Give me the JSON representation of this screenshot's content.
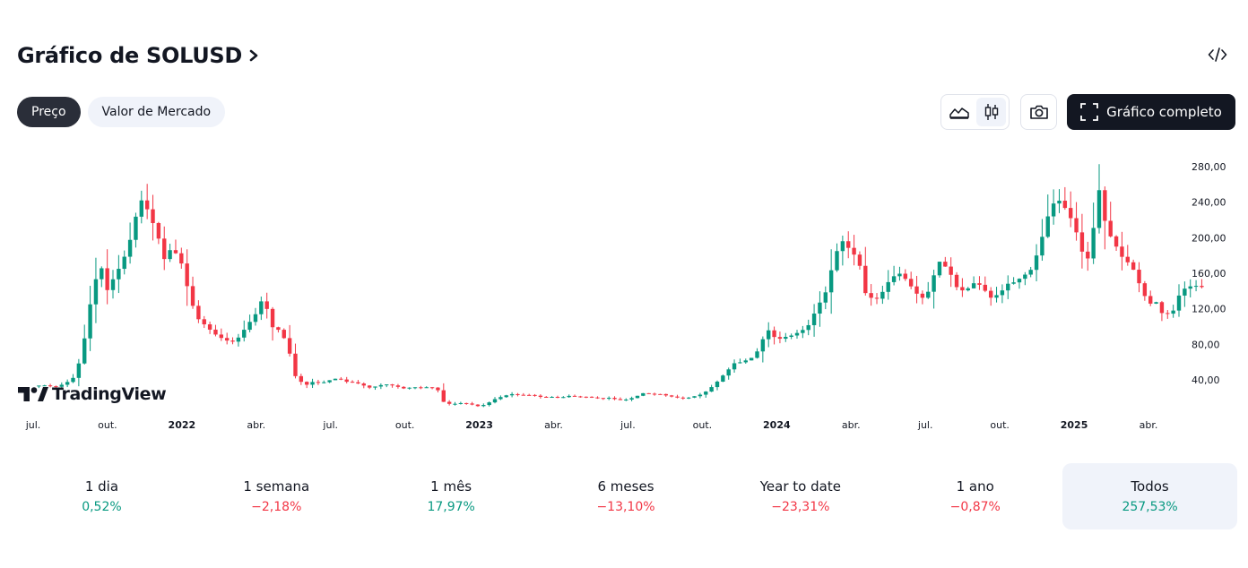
{
  "header": {
    "title": "Gráfico de SOLUSD"
  },
  "tabs": [
    {
      "label": "Preço",
      "active": true
    },
    {
      "label": "Valor de Mercado",
      "active": false
    }
  ],
  "toolbar": {
    "area_icon": "area-chart-icon",
    "candle_icon": "candlestick-icon",
    "camera_icon": "camera-icon",
    "full_chart_label": "Gráfico completo",
    "expand_icon": "fullscreen-icon",
    "embed_icon": "code-icon"
  },
  "brand": {
    "logo_text": "TradingView"
  },
  "colors": {
    "up": "#089981",
    "down": "#f23645",
    "text": "#131722",
    "active_bg": "#f0f3fa"
  },
  "chart_data": {
    "type": "candlestick",
    "series_name": "SOLUSD weekly",
    "y_axis": {
      "ticks": [
        "280,00",
        "240,00",
        "200,00",
        "160,00",
        "120,00",
        "80,00",
        "40,00"
      ],
      "tick_values": [
        280,
        240,
        200,
        160,
        120,
        80,
        40
      ],
      "ylim": [
        -20,
        295
      ]
    },
    "x_axis": {
      "range_months": [
        0,
        48
      ],
      "ticks": [
        {
          "label": "jul.",
          "month": 0,
          "year": false
        },
        {
          "label": "out.",
          "month": 3,
          "year": false
        },
        {
          "label": "2022",
          "month": 6,
          "year": true
        },
        {
          "label": "abr.",
          "month": 9,
          "year": false
        },
        {
          "label": "jul.",
          "month": 12,
          "year": false
        },
        {
          "label": "out.",
          "month": 15,
          "year": false
        },
        {
          "label": "2023",
          "month": 18,
          "year": true
        },
        {
          "label": "abr.",
          "month": 21,
          "year": false
        },
        {
          "label": "jul.",
          "month": 24,
          "year": false
        },
        {
          "label": "out.",
          "month": 27,
          "year": false
        },
        {
          "label": "2024",
          "month": 30,
          "year": true
        },
        {
          "label": "abr.",
          "month": 33,
          "year": false
        },
        {
          "label": "jul.",
          "month": 36,
          "year": false
        },
        {
          "label": "out.",
          "month": 39,
          "year": false
        },
        {
          "label": "2025",
          "month": 42,
          "year": true
        },
        {
          "label": "abr.",
          "month": 45,
          "year": false
        }
      ]
    },
    "close_path": [
      [
        0,
        33
      ],
      [
        0.4,
        34
      ],
      [
        0.9,
        32
      ],
      [
        1.3,
        36
      ],
      [
        1.7,
        44
      ],
      [
        2.0,
        75
      ],
      [
        2.3,
        125
      ],
      [
        2.5,
        150
      ],
      [
        2.7,
        172
      ],
      [
        3.0,
        140
      ],
      [
        3.3,
        158
      ],
      [
        3.6,
        172
      ],
      [
        4.0,
        205
      ],
      [
        4.3,
        245
      ],
      [
        4.6,
        232
      ],
      [
        5.0,
        205
      ],
      [
        5.3,
        175
      ],
      [
        5.6,
        190
      ],
      [
        6.0,
        170
      ],
      [
        6.3,
        135
      ],
      [
        6.6,
        110
      ],
      [
        7.0,
        100
      ],
      [
        7.3,
        92
      ],
      [
        7.6,
        87
      ],
      [
        8.0,
        82
      ],
      [
        8.3,
        88
      ],
      [
        8.6,
        100
      ],
      [
        9.0,
        115
      ],
      [
        9.3,
        135
      ],
      [
        9.6,
        100
      ],
      [
        10.0,
        95
      ],
      [
        10.3,
        75
      ],
      [
        10.6,
        42
      ],
      [
        11.0,
        34
      ],
      [
        11.3,
        38
      ],
      [
        11.6,
        36
      ],
      [
        12.0,
        40
      ],
      [
        12.3,
        42
      ],
      [
        12.6,
        38
      ],
      [
        13.0,
        37
      ],
      [
        13.3,
        34
      ],
      [
        13.6,
        31
      ],
      [
        14.0,
        34
      ],
      [
        14.3,
        35
      ],
      [
        14.6,
        33
      ],
      [
        15.0,
        30
      ],
      [
        15.3,
        32
      ],
      [
        15.6,
        31
      ],
      [
        16.0,
        32
      ],
      [
        16.3,
        30
      ],
      [
        16.6,
        13
      ],
      [
        17.0,
        13
      ],
      [
        17.3,
        14
      ],
      [
        17.6,
        13
      ],
      [
        18.0,
        10
      ],
      [
        18.3,
        13
      ],
      [
        18.6,
        18
      ],
      [
        19.0,
        22
      ],
      [
        19.3,
        24
      ],
      [
        19.6,
        23
      ],
      [
        20.0,
        23
      ],
      [
        20.3,
        22
      ],
      [
        20.6,
        20
      ],
      [
        21.0,
        21
      ],
      [
        21.3,
        20
      ],
      [
        21.6,
        22
      ],
      [
        22.0,
        21
      ],
      [
        22.3,
        21
      ],
      [
        22.6,
        20
      ],
      [
        23.0,
        19
      ],
      [
        23.3,
        20
      ],
      [
        23.6,
        17
      ],
      [
        24.0,
        18
      ],
      [
        24.3,
        21
      ],
      [
        24.6,
        25
      ],
      [
        25.0,
        24
      ],
      [
        25.3,
        24
      ],
      [
        25.6,
        22
      ],
      [
        26.0,
        20
      ],
      [
        26.3,
        19
      ],
      [
        26.6,
        21
      ],
      [
        27.0,
        24
      ],
      [
        27.3,
        30
      ],
      [
        27.6,
        38
      ],
      [
        28.0,
        50
      ],
      [
        28.3,
        59
      ],
      [
        28.6,
        60
      ],
      [
        29.0,
        65
      ],
      [
        29.3,
        75
      ],
      [
        29.6,
        98
      ],
      [
        30.0,
        85
      ],
      [
        30.3,
        88
      ],
      [
        30.6,
        90
      ],
      [
        31.0,
        95
      ],
      [
        31.3,
        102
      ],
      [
        31.6,
        120
      ],
      [
        32.0,
        140
      ],
      [
        32.3,
        175
      ],
      [
        32.6,
        198
      ],
      [
        33.0,
        185
      ],
      [
        33.3,
        175
      ],
      [
        33.6,
        135
      ],
      [
        34.0,
        130
      ],
      [
        34.3,
        140
      ],
      [
        34.6,
        155
      ],
      [
        35.0,
        160
      ],
      [
        35.3,
        150
      ],
      [
        35.6,
        138
      ],
      [
        36.0,
        130
      ],
      [
        36.3,
        155
      ],
      [
        36.6,
        175
      ],
      [
        37.0,
        160
      ],
      [
        37.3,
        142
      ],
      [
        37.6,
        140
      ],
      [
        38.0,
        150
      ],
      [
        38.3,
        145
      ],
      [
        38.6,
        132
      ],
      [
        39.0,
        137
      ],
      [
        39.3,
        148
      ],
      [
        39.6,
        150
      ],
      [
        40.0,
        158
      ],
      [
        40.3,
        165
      ],
      [
        40.6,
        190
      ],
      [
        41.0,
        230
      ],
      [
        41.3,
        245
      ],
      [
        41.6,
        235
      ],
      [
        42.0,
        215
      ],
      [
        42.3,
        185
      ],
      [
        42.6,
        175
      ],
      [
        43.0,
        255
      ],
      [
        43.3,
        210
      ],
      [
        43.6,
        195
      ],
      [
        44.0,
        175
      ],
      [
        44.3,
        170
      ],
      [
        44.6,
        150
      ],
      [
        45.0,
        125
      ],
      [
        45.3,
        128
      ],
      [
        45.6,
        112
      ],
      [
        46.0,
        118
      ],
      [
        46.3,
        140
      ],
      [
        46.6,
        145
      ],
      [
        47.0,
        146
      ],
      [
        47.3,
        143
      ]
    ]
  },
  "periods": [
    {
      "label": "1 dia",
      "value": "0,52%",
      "trend": "up",
      "active": false
    },
    {
      "label": "1 semana",
      "value": "−2,18%",
      "trend": "down",
      "active": false
    },
    {
      "label": "1 mês",
      "value": "17,97%",
      "trend": "up",
      "active": false
    },
    {
      "label": "6 meses",
      "value": "−13,10%",
      "trend": "down",
      "active": false
    },
    {
      "label": "Year to date",
      "value": "−23,31%",
      "trend": "down",
      "active": false
    },
    {
      "label": "1 ano",
      "value": "−0,87%",
      "trend": "down",
      "active": false
    },
    {
      "label": "Todos",
      "value": "257,53%",
      "trend": "up",
      "active": true
    }
  ]
}
